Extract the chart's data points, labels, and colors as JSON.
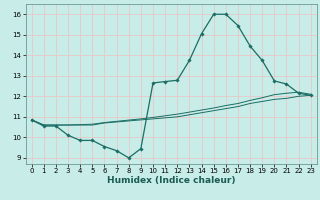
{
  "xlabel": "Humidex (Indice chaleur)",
  "bg_color": "#c8ece8",
  "grid_color": "#e8c8c8",
  "line_color": "#1a6e64",
  "xlim": [
    -0.5,
    23.5
  ],
  "ylim": [
    8.7,
    16.5
  ],
  "xticks": [
    0,
    1,
    2,
    3,
    4,
    5,
    6,
    7,
    8,
    9,
    10,
    11,
    12,
    13,
    14,
    15,
    16,
    17,
    18,
    19,
    20,
    21,
    22,
    23
  ],
  "yticks": [
    9,
    10,
    11,
    12,
    13,
    14,
    15,
    16
  ],
  "series1_x": [
    0,
    1,
    2,
    3,
    4,
    5,
    6,
    7,
    8,
    9,
    10,
    11,
    12,
    13,
    14,
    15,
    16,
    17,
    18,
    19,
    20,
    21,
    22,
    23
  ],
  "series1_y": [
    10.85,
    10.55,
    10.55,
    10.1,
    9.85,
    9.85,
    9.55,
    9.35,
    9.0,
    9.45,
    12.65,
    12.72,
    12.78,
    13.75,
    15.05,
    16.0,
    16.0,
    15.45,
    14.45,
    13.75,
    12.75,
    12.6,
    12.15,
    12.05
  ],
  "series2_x": [
    0,
    1,
    2,
    3,
    4,
    5,
    6,
    7,
    8,
    9,
    10,
    11,
    12,
    13,
    14,
    15,
    16,
    17,
    18,
    19,
    20,
    21,
    22,
    23
  ],
  "series2_y": [
    10.85,
    10.6,
    10.6,
    10.6,
    10.6,
    10.6,
    10.7,
    10.75,
    10.8,
    10.85,
    10.9,
    10.95,
    11.0,
    11.1,
    11.2,
    11.3,
    11.4,
    11.5,
    11.65,
    11.75,
    11.85,
    11.9,
    12.0,
    12.05
  ],
  "series3_x": [
    0,
    1,
    2,
    3,
    4,
    5,
    6,
    7,
    8,
    9,
    10,
    11,
    12,
    13,
    14,
    15,
    16,
    17,
    18,
    19,
    20,
    21,
    22,
    23
  ],
  "series3_y": [
    10.85,
    10.6,
    10.6,
    10.6,
    10.62,
    10.64,
    10.72,
    10.78,
    10.84,
    10.9,
    10.97,
    11.05,
    11.13,
    11.23,
    11.33,
    11.43,
    11.55,
    11.65,
    11.8,
    11.93,
    12.08,
    12.15,
    12.2,
    12.1
  ]
}
